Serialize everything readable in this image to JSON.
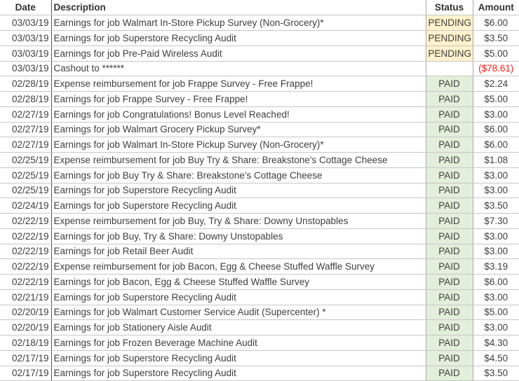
{
  "headers": {
    "date": "Date",
    "description": "Description",
    "status": "Status",
    "amount": "Amount"
  },
  "colors": {
    "pending_bg": "#fff2cc",
    "paid_bg": "#e2efda",
    "negative": "#ff1a1a"
  },
  "rows": [
    {
      "date": "03/03/19",
      "description": "Earnings for job Walmart In-Store Pickup Survey (Non-Grocery)*",
      "status": "PENDING",
      "amount": "$6.00"
    },
    {
      "date": "03/03/19",
      "description": "Earnings for job Superstore Recycling Audit",
      "status": "PENDING",
      "amount": "$3.50"
    },
    {
      "date": "03/03/19",
      "description": "Earnings for job Pre-Paid Wireless Audit",
      "status": "PENDING",
      "amount": "$5.00"
    },
    {
      "date": "03/03/19",
      "description": "Cashout to ******",
      "status": "",
      "amount": "($78.61)"
    },
    {
      "date": "02/28/19",
      "description": "Expense reimbursement for job Frappe Survey - Free Frappe!",
      "status": "PAID",
      "amount": "$2.24"
    },
    {
      "date": "02/28/19",
      "description": "Earnings for job Frappe Survey - Free Frappe!",
      "status": "PAID",
      "amount": "$5.00"
    },
    {
      "date": "02/27/19",
      "description": "Earnings for job Congratulations! Bonus Level Reached!",
      "status": "PAID",
      "amount": "$3.00"
    },
    {
      "date": "02/27/19",
      "description": "Earnings for job Walmart Grocery Pickup Survey*",
      "status": "PAID",
      "amount": "$6.00"
    },
    {
      "date": "02/27/19",
      "description": "Earnings for job Walmart In-Store Pickup Survey (Non-Grocery)*",
      "status": "PAID",
      "amount": "$6.00"
    },
    {
      "date": "02/25/19",
      "description": "Expense reimbursement for job Buy Try & Share: Breakstone's Cottage Cheese",
      "status": "PAID",
      "amount": "$1.08"
    },
    {
      "date": "02/25/19",
      "description": "Earnings for job Buy Try & Share: Breakstone's Cottage Cheese",
      "status": "PAID",
      "amount": "$3.00"
    },
    {
      "date": "02/25/19",
      "description": "Earnings for job Superstore Recycling Audit",
      "status": "PAID",
      "amount": "$3.00"
    },
    {
      "date": "02/24/19",
      "description": "Earnings for job Superstore Recycling Audit",
      "status": "PAID",
      "amount": "$3.50"
    },
    {
      "date": "02/22/19",
      "description": "Expense reimbursement for job Buy, Try & Share: Downy Unstopables",
      "status": "PAID",
      "amount": "$7.30"
    },
    {
      "date": "02/22/19",
      "description": "Earnings for job Buy, Try & Share: Downy Unstopables",
      "status": "PAID",
      "amount": "$3.00"
    },
    {
      "date": "02/22/19",
      "description": "Earnings for job Retail Beer Audit",
      "status": "PAID",
      "amount": "$3.00"
    },
    {
      "date": "02/22/19",
      "description": "Expense reimbursement for job Bacon, Egg & Cheese Stuffed Waffle Survey",
      "status": "PAID",
      "amount": "$3.19"
    },
    {
      "date": "02/22/19",
      "description": "Earnings for job Bacon, Egg & Cheese Stuffed Waffle Survey",
      "status": "PAID",
      "amount": "$6.00"
    },
    {
      "date": "02/21/19",
      "description": "Earnings for job Superstore Recycling Audit",
      "status": "PAID",
      "amount": "$3.00"
    },
    {
      "date": "02/20/19",
      "description": "Earnings for job Walmart Customer Service Audit (Supercenter) *",
      "status": "PAID",
      "amount": "$5.00"
    },
    {
      "date": "02/20/19",
      "description": "Earnings for job Stationery Aisle Audit",
      "status": "PAID",
      "amount": "$3.00"
    },
    {
      "date": "02/18/19",
      "description": "Earnings for job Frozen Beverage Machine Audit",
      "status": "PAID",
      "amount": "$4.30"
    },
    {
      "date": "02/17/19",
      "description": "Earnings for job Superstore Recycling Audit",
      "status": "PAID",
      "amount": "$4.50"
    },
    {
      "date": "02/17/19",
      "description": "Earnings for job Superstore Recycling Audit",
      "status": "PAID",
      "amount": "$3.50"
    }
  ]
}
